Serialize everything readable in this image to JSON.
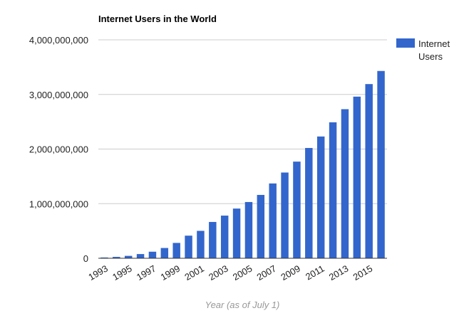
{
  "chart_data": {
    "type": "bar",
    "title": "Internet Users in the World",
    "xlabel": "Year (as of July 1)",
    "ylabel": "",
    "ylim": [
      0,
      4000000000
    ],
    "yticks": [
      0,
      1000000000,
      2000000000,
      3000000000,
      4000000000
    ],
    "ytick_labels": [
      "0",
      "1,000,000,000",
      "2,000,000,000",
      "3,000,000,000",
      "4,000,000,000"
    ],
    "categories": [
      "1993",
      "1994",
      "1995",
      "1996",
      "1997",
      "1998",
      "1999",
      "2000",
      "2001",
      "2002",
      "2003",
      "2004",
      "2005",
      "2006",
      "2007",
      "2008",
      "2009",
      "2010",
      "2011",
      "2012",
      "2013",
      "2014",
      "2015",
      "2016"
    ],
    "xtick_labels": [
      "1993",
      "1995",
      "1997",
      "1999",
      "2001",
      "2003",
      "2005",
      "2007",
      "2009",
      "2011",
      "2013",
      "2015"
    ],
    "series": [
      {
        "name": "Internet Users",
        "color": "#3366cc",
        "values": [
          14000000,
          25000000,
          44000000,
          77000000,
          120000000,
          188000000,
          281000000,
          414000000,
          502000000,
          665000000,
          781000000,
          910000000,
          1030000000,
          1160000000,
          1370000000,
          1570000000,
          1770000000,
          2020000000,
          2230000000,
          2490000000,
          2730000000,
          2960000000,
          3190000000,
          3430000000
        ]
      }
    ],
    "legend": {
      "position": "right",
      "label_lines": [
        "Internet",
        "Users"
      ]
    },
    "grid": true
  }
}
